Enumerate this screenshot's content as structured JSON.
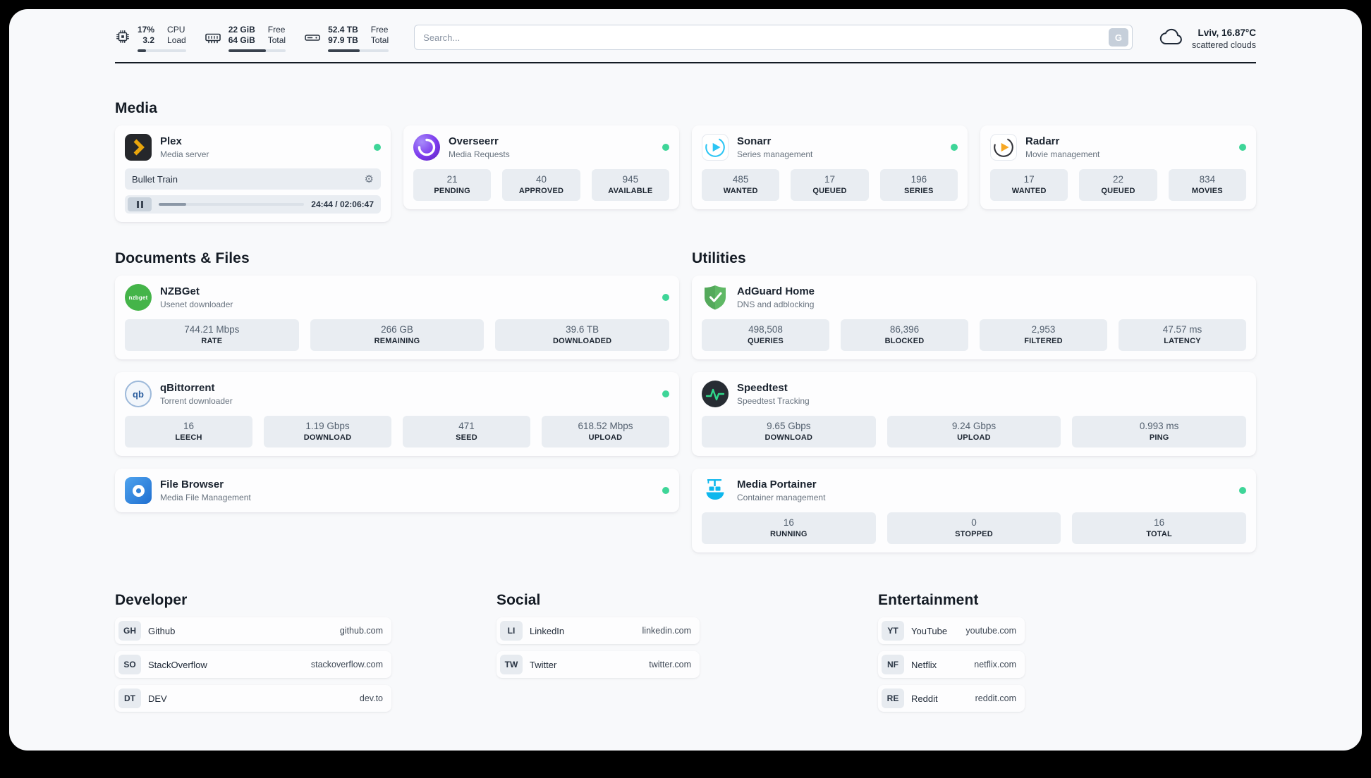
{
  "topbar": {
    "cpu": {
      "value_top": "17%",
      "value_bottom": "3.2",
      "label_top": "CPU",
      "label_bottom": "Load",
      "progress": 17
    },
    "memory": {
      "value_top": "22 GiB",
      "value_bottom": "64 GiB",
      "label_top": "Free",
      "label_bottom": "Total",
      "progress": 65
    },
    "storage": {
      "value_top": "52.4 TB",
      "value_bottom": "97.9 TB",
      "label_top": "Free",
      "label_bottom": "Total",
      "progress": 52
    },
    "search": {
      "placeholder": "Search...",
      "button_label": "G"
    },
    "weather": {
      "location": "Lviv, 16.87°C",
      "condition": "scattered clouds"
    }
  },
  "media": {
    "title": "Media",
    "plex": {
      "name": "Plex",
      "subtitle": "Media server",
      "now_playing": "Bullet Train",
      "time": "24:44 / 02:06:47",
      "progress": 19
    },
    "overseerr": {
      "name": "Overseerr",
      "subtitle": "Media Requests",
      "stats": [
        {
          "value": "21",
          "label": "PENDING"
        },
        {
          "value": "40",
          "label": "APPROVED"
        },
        {
          "value": "945",
          "label": "AVAILABLE"
        }
      ]
    },
    "sonarr": {
      "name": "Sonarr",
      "subtitle": "Series management",
      "stats": [
        {
          "value": "485",
          "label": "WANTED"
        },
        {
          "value": "17",
          "label": "QUEUED"
        },
        {
          "value": "196",
          "label": "SERIES"
        }
      ]
    },
    "radarr": {
      "name": "Radarr",
      "subtitle": "Movie management",
      "stats": [
        {
          "value": "17",
          "label": "WANTED"
        },
        {
          "value": "22",
          "label": "QUEUED"
        },
        {
          "value": "834",
          "label": "MOVIES"
        }
      ]
    }
  },
  "documents": {
    "title": "Documents & Files",
    "nzbget": {
      "name": "NZBGet",
      "subtitle": "Usenet downloader",
      "icon_text": "nzbget",
      "stats": [
        {
          "value": "744.21 Mbps",
          "label": "RATE"
        },
        {
          "value": "266 GB",
          "label": "REMAINING"
        },
        {
          "value": "39.6 TB",
          "label": "DOWNLOADED"
        }
      ]
    },
    "qbittorrent": {
      "name": "qBittorrent",
      "subtitle": "Torrent downloader",
      "icon_text": "qb",
      "stats": [
        {
          "value": "16",
          "label": "LEECH"
        },
        {
          "value": "1.19 Gbps",
          "label": "DOWNLOAD"
        },
        {
          "value": "471",
          "label": "SEED"
        },
        {
          "value": "618.52 Mbps",
          "label": "UPLOAD"
        }
      ]
    },
    "filebrowser": {
      "name": "File Browser",
      "subtitle": "Media File Management"
    }
  },
  "utilities": {
    "title": "Utilities",
    "adguard": {
      "name": "AdGuard Home",
      "subtitle": "DNS and adblocking",
      "stats": [
        {
          "value": "498,508",
          "label": "QUERIES"
        },
        {
          "value": "86,396",
          "label": "BLOCKED"
        },
        {
          "value": "2,953",
          "label": "FILTERED"
        },
        {
          "value": "47.57 ms",
          "label": "LATENCY"
        }
      ]
    },
    "speedtest": {
      "name": "Speedtest",
      "subtitle": "Speedtest Tracking",
      "stats": [
        {
          "value": "9.65 Gbps",
          "label": "DOWNLOAD"
        },
        {
          "value": "9.24 Gbps",
          "label": "UPLOAD"
        },
        {
          "value": "0.993 ms",
          "label": "PING"
        }
      ]
    },
    "portainer": {
      "name": "Media Portainer",
      "subtitle": "Container management",
      "stats": [
        {
          "value": "16",
          "label": "RUNNING"
        },
        {
          "value": "0",
          "label": "STOPPED"
        },
        {
          "value": "16",
          "label": "TOTAL"
        }
      ]
    }
  },
  "bookmarks": {
    "developer": {
      "title": "Developer",
      "items": [
        {
          "abbr": "GH",
          "name": "Github",
          "url": "github.com"
        },
        {
          "abbr": "SO",
          "name": "StackOverflow",
          "url": "stackoverflow.com"
        },
        {
          "abbr": "DT",
          "name": "DEV",
          "url": "dev.to"
        }
      ]
    },
    "social": {
      "title": "Social",
      "items": [
        {
          "abbr": "LI",
          "name": "LinkedIn",
          "url": "linkedin.com"
        },
        {
          "abbr": "TW",
          "name": "Twitter",
          "url": "twitter.com"
        }
      ]
    },
    "entertainment": {
      "title": "Entertainment",
      "items": [
        {
          "abbr": "YT",
          "name": "YouTube",
          "url": "youtube.com"
        },
        {
          "abbr": "NF",
          "name": "Netflix",
          "url": "netflix.com"
        },
        {
          "abbr": "RE",
          "name": "Reddit",
          "url": "reddit.com"
        }
      ]
    }
  },
  "icons": {
    "gear": "⚙"
  },
  "colors": {
    "status_online": "#3ed598",
    "plex_bg": "#25272b",
    "plex_accent": "#e8a50c",
    "sonarr_accent": "#2cc5f4",
    "radarr_accent": "#f7a824",
    "nzbget_green": "#44b449",
    "qbittorrent_blue": "#2f6db5",
    "adguard_green": "#5fb865",
    "speedtest_bg": "#272c33",
    "speedtest_green": "#2fd98a",
    "portainer_blue": "#0db7ed",
    "search_button_bg": "#c6cfda"
  }
}
